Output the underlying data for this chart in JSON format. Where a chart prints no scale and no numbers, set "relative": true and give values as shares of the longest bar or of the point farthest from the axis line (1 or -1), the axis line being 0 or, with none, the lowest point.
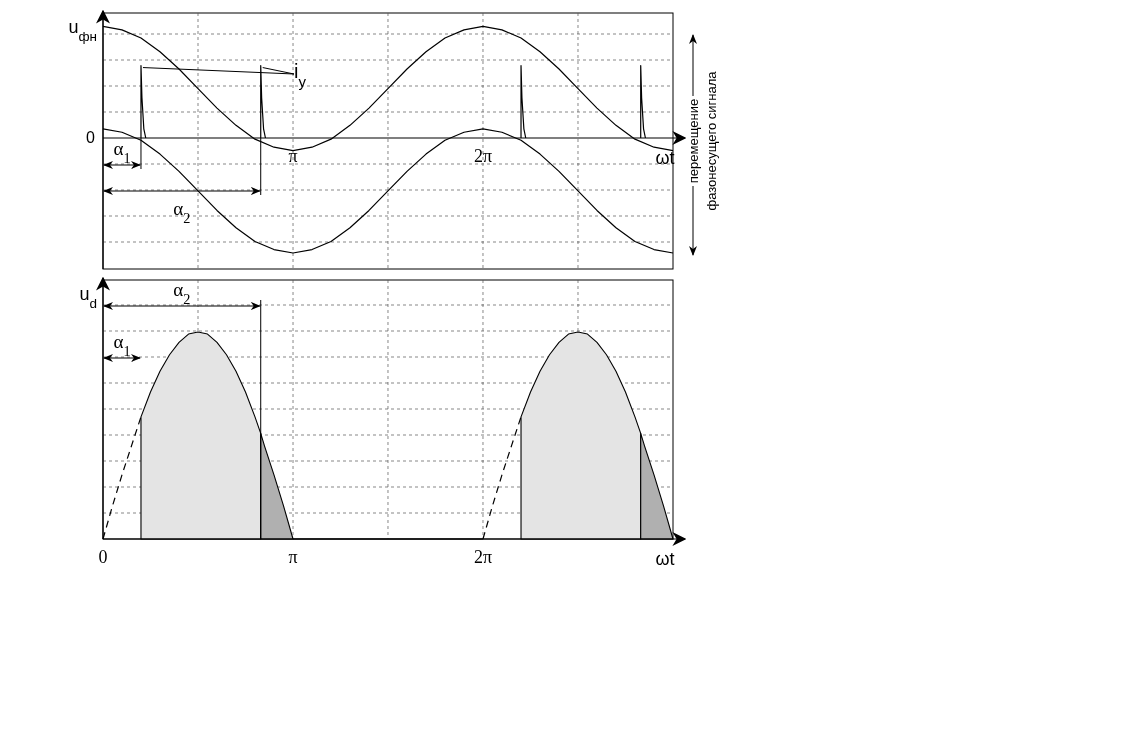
{
  "chart_data": [
    {
      "type": "line",
      "relative": true,
      "xlabel": "ωt",
      "ylabel": "u$_{фн}$",
      "xlim": [
        0,
        9.425
      ],
      "xticks": [
        {
          "value": 1.571,
          "label": null
        },
        {
          "value": 3.142,
          "label": "π"
        },
        {
          "value": 4.712,
          "label": null
        },
        {
          "value": 6.283,
          "label": "2π"
        },
        {
          "value": 7.854,
          "label": null
        }
      ],
      "grid": true,
      "series": [
        {
          "type": "line",
          "color": "#000000",
          "x": [
            0,
            0.314,
            0.628,
            0.942,
            1.257,
            1.571,
            1.885,
            2.199,
            2.513,
            2.827,
            3.142,
            3.456,
            3.77,
            4.084,
            4.398,
            4.712,
            5.027,
            5.341,
            5.655,
            5.969,
            6.283,
            6.597,
            6.912,
            7.226,
            7.54,
            7.854,
            8.168,
            8.482,
            8.796,
            9.111,
            9.425
          ],
          "values": [
            0.97,
            0.94,
            0.87,
            0.75,
            0.6,
            0.43,
            0.26,
            0.11,
            -0.01,
            -0.08,
            -0.11,
            -0.08,
            -0.01,
            0.11,
            0.26,
            0.43,
            0.6,
            0.75,
            0.87,
            0.94,
            0.97,
            0.94,
            0.87,
            0.75,
            0.6,
            0.43,
            0.26,
            0.11,
            -0.01,
            -0.08,
            -0.11
          ]
        },
        {
          "type": "line",
          "color": "#000000",
          "x": [
            0,
            0.314,
            0.628,
            0.942,
            1.257,
            1.571,
            1.885,
            2.199,
            2.513,
            2.827,
            3.142,
            3.456,
            3.77,
            4.084,
            4.398,
            4.712,
            5.027,
            5.341,
            5.655,
            5.969,
            6.283,
            6.597,
            6.912,
            7.226,
            7.54,
            7.854,
            8.168,
            8.482,
            8.796,
            9.111,
            9.425
          ],
          "values": [
            0.08,
            0.05,
            -0.02,
            -0.14,
            -0.29,
            -0.46,
            -0.63,
            -0.78,
            -0.9,
            -0.97,
            -1,
            -0.97,
            -0.9,
            -0.78,
            -0.63,
            -0.46,
            -0.29,
            -0.14,
            -0.02,
            0.05,
            0.08,
            0.05,
            -0.02,
            -0.14,
            -0.29,
            -0.46,
            -0.63,
            -0.78,
            -0.9,
            -0.97,
            -1
          ]
        },
        {
          "type": "line",
          "color": "#000000",
          "x": [
            0.628,
            0.628,
            0.644,
            0.675,
            0.707,
            1.571,
            2.608,
            2.608,
            2.623,
            2.655,
            2.686,
            4.712,
            6.912,
            6.912,
            6.927,
            6.959,
            6.99,
            7.854,
            8.891,
            8.891,
            8.906,
            8.938,
            8.969
          ],
          "values": [
            0,
            0.63,
            0.35,
            0.08,
            0,
            null,
            0,
            0.63,
            0.35,
            0.08,
            0,
            null,
            0,
            0.63,
            0.35,
            0.08,
            0,
            null,
            0,
            0.63,
            0.35,
            0.08,
            0
          ]
        }
      ],
      "annotations": [
        "0",
        "α$_{1}$",
        "α$_{2}$",
        "i$_{y}$",
        "перемещение фазонесущего сигнала"
      ]
    },
    {
      "type": "line",
      "relative": true,
      "xlabel": "ωt",
      "ylabel": "u$_{d}$",
      "xlim": [
        0,
        9.425
      ],
      "xticks": [
        0,
        {
          "value": 1.571,
          "label": null
        },
        {
          "value": 3.142,
          "label": "π"
        },
        {
          "value": 4.712,
          "label": null
        },
        {
          "value": 6.283,
          "label": "2π"
        },
        {
          "value": 7.854,
          "label": null
        }
      ],
      "grid": true,
      "series": [
        {
          "type": "line",
          "line_style": "dashed",
          "color": "#000000",
          "x": [
            0,
            0.157,
            0.314,
            0.471,
            0.628
          ],
          "values": [
            0,
            0.16,
            0.31,
            0.45,
            0.59
          ]
        },
        {
          "type": "area",
          "color": "#e4e4e4",
          "x": [
            0.628,
            0.785,
            0.942,
            1.1,
            1.257,
            1.414,
            1.571,
            1.728,
            1.885,
            2.042,
            2.199,
            2.356,
            2.513,
            2.608
          ],
          "values": [
            0.59,
            0.71,
            0.81,
            0.89,
            0.95,
            0.99,
            1,
            0.99,
            0.95,
            0.89,
            0.81,
            0.71,
            0.59,
            0.51
          ]
        },
        {
          "type": "area",
          "color": "#b0b0b0",
          "x": [
            2.608,
            2.67,
            2.827,
            2.985,
            3.142
          ],
          "values": [
            0.51,
            0.45,
            0.31,
            0.16,
            0
          ]
        },
        {
          "type": "line",
          "color": "#000000",
          "x": [
            3.142,
            6.283
          ],
          "values": [
            0,
            0
          ]
        },
        {
          "type": "line",
          "line_style": "dashed",
          "color": "#000000",
          "x": [
            6.283,
            6.44,
            6.597,
            6.754,
            6.912
          ],
          "values": [
            0,
            0.16,
            0.31,
            0.45,
            0.59
          ]
        },
        {
          "type": "area",
          "color": "#e4e4e4",
          "x": [
            6.912,
            7.069,
            7.226,
            7.383,
            7.54,
            7.697,
            7.854,
            8.011,
            8.168,
            8.325,
            8.482,
            8.639,
            8.796,
            8.891
          ],
          "values": [
            0.59,
            0.71,
            0.81,
            0.89,
            0.95,
            0.99,
            1,
            0.99,
            0.95,
            0.89,
            0.81,
            0.71,
            0.59,
            0.51
          ]
        },
        {
          "type": "area",
          "color": "#b0b0b0",
          "x": [
            8.891,
            8.954,
            9.111,
            9.268,
            9.425
          ],
          "values": [
            0.51,
            0.45,
            0.31,
            0.16,
            0
          ]
        }
      ],
      "ref_lines": [
        {
          "axis": "x",
          "value": 2.608,
          "color": "#000000"
        }
      ],
      "annotations": [
        "α$_{2}$",
        "α$_{1}$"
      ]
    }
  ]
}
